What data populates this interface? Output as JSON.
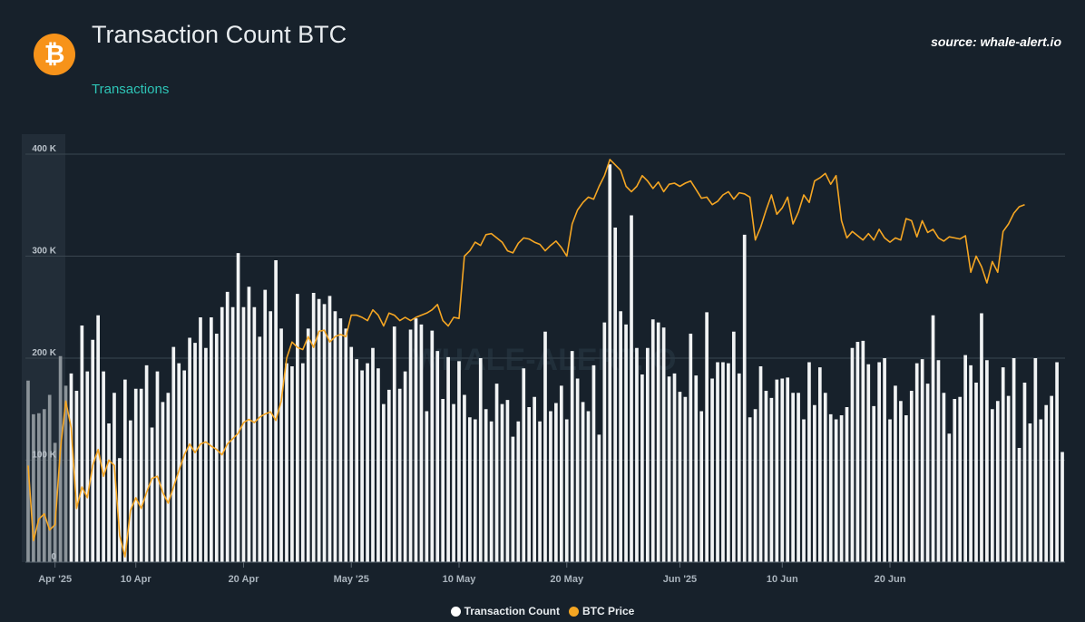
{
  "header": {
    "title": "Transaction Count BTC",
    "subtitle": "Transactions",
    "source": "source: whale-alert.io",
    "logo_symbol": "₿"
  },
  "colors": {
    "background": "#17212b",
    "bar": "#f1f3f4",
    "price_line": "#f5a623",
    "logo": "#f7931a",
    "accent_subtitle": "#2ec4b6",
    "grid": "#3a4650"
  },
  "chart_data": {
    "type": "bar",
    "y_ticks": [
      {
        "value": 0,
        "label": "0"
      },
      {
        "value": 100000,
        "label": "100 K"
      },
      {
        "value": 200000,
        "label": "200 K"
      },
      {
        "value": 300000,
        "label": "300 K"
      },
      {
        "value": 400000,
        "label": "400 K"
      }
    ],
    "ylim": [
      0,
      400000
    ],
    "x_ticks": [
      {
        "label": "Apr '25",
        "index": 5
      },
      {
        "label": "10 Apr",
        "index": 20
      },
      {
        "label": "20 Apr",
        "index": 40
      },
      {
        "label": "May '25",
        "index": 60
      },
      {
        "label": "10 May",
        "index": 80
      },
      {
        "label": "20 May",
        "index": 100
      },
      {
        "label": "Jun '25",
        "index": 121
      },
      {
        "label": "10 Jun",
        "index": 140
      },
      {
        "label": "20 Jun",
        "index": 160
      }
    ],
    "series": [
      {
        "name": "Transaction Count",
        "values": [
          178000,
          145000,
          146000,
          150000,
          164000,
          117000,
          202000,
          173000,
          185000,
          168000,
          232000,
          187000,
          218000,
          242000,
          187000,
          136000,
          166000,
          102000,
          179000,
          139000,
          170000,
          170000,
          193000,
          132000,
          187000,
          157000,
          166000,
          211000,
          195000,
          188000,
          220000,
          215000,
          240000,
          210000,
          240000,
          224000,
          250000,
          265000,
          250000,
          303000,
          250000,
          270000,
          250000,
          221000,
          267000,
          246000,
          296000,
          229000,
          195000,
          192000,
          263000,
          195000,
          229000,
          264000,
          258000,
          253000,
          261000,
          246000,
          239000,
          229000,
          211000,
          199000,
          188000,
          195000,
          210000,
          190000,
          155000,
          169000,
          231000,
          170000,
          187000,
          228000,
          239000,
          233000,
          148000,
          227000,
          207000,
          160000,
          201000,
          155000,
          197000,
          164000,
          142000,
          140000,
          200000,
          150000,
          138000,
          175000,
          155000,
          159000,
          123000,
          138000,
          190000,
          152000,
          162000,
          138000,
          226000,
          148000,
          156000,
          173000,
          140000,
          207000,
          180000,
          157000,
          148000,
          193000,
          125000,
          235000,
          390000,
          328000,
          246000,
          233000,
          340000,
          210000,
          184000,
          210000,
          238000,
          235000,
          230000,
          182000,
          185000,
          167000,
          162000,
          224000,
          183000,
          148000,
          245000,
          180000,
          196000,
          196000,
          195000,
          226000,
          185000,
          321000,
          142000,
          150000,
          192000,
          168000,
          161000,
          179000,
          180000,
          181000,
          166000,
          166000,
          140000,
          196000,
          154000,
          191000,
          166000,
          145000,
          140000,
          144000,
          152000,
          210000,
          216000,
          217000,
          194000,
          153000,
          196000,
          200000,
          140000,
          173000,
          158000,
          144000,
          168000,
          195000,
          199000,
          175000,
          242000,
          198000,
          166000,
          126000,
          160000,
          162000,
          203000,
          193000,
          176000,
          244000,
          198000,
          150000,
          158000,
          191000,
          163000,
          200000,
          112000,
          176000,
          136000,
          200000,
          140000,
          154000,
          163000,
          196000,
          108000
        ]
      },
      {
        "name": "BTC Price",
        "values": [
          83000,
          76000,
          78000,
          78500,
          77000,
          77500,
          84500,
          89000,
          86500,
          79000,
          81000,
          80000,
          83000,
          84500,
          82000,
          83500,
          83000,
          76500,
          74500,
          78800,
          80000,
          79000,
          80500,
          81800,
          82000,
          80500,
          79500,
          81000,
          82500,
          84000,
          85000,
          84200,
          85000,
          85200,
          84800,
          84500,
          84000,
          85000,
          85500,
          86000,
          87000,
          87300,
          87000,
          87500,
          87800,
          88000,
          87200,
          89000,
          93000,
          94500,
          94000,
          93800,
          95000,
          94000,
          95500,
          95600,
          94500,
          95000,
          95200,
          95000,
          97000,
          97000,
          96800,
          96500,
          97500,
          97000,
          96000,
          97200,
          97000,
          96500,
          96800,
          96500,
          96800,
          97000,
          97200,
          97500,
          98000,
          96500,
          96000,
          96800,
          96700,
          102500,
          103000,
          103800,
          103500,
          104500,
          104600,
          104200,
          103800,
          103000,
          102800,
          103700,
          104200,
          104100,
          103800,
          103600,
          103000,
          103500,
          103900,
          103300,
          102500,
          105500,
          106800,
          107500,
          108000,
          107800,
          109000,
          110000,
          111500,
          111000,
          110500,
          109000,
          108500,
          109000,
          110000,
          109500,
          108800,
          109400,
          108500,
          109200,
          109300,
          109000,
          109300,
          109500,
          108700,
          107900,
          108000,
          107300,
          107600,
          108200,
          108500,
          107800,
          108400,
          108300,
          108000,
          104000,
          105200,
          106800,
          108200,
          106400,
          107000,
          108000,
          105500,
          106600,
          108200,
          107500,
          109500,
          109800,
          110200,
          109200,
          110000,
          105800,
          104200,
          104800,
          104400,
          104000,
          104600,
          104000,
          105000,
          104200,
          103800,
          104200,
          104000,
          106000,
          105800,
          104300,
          105800,
          104700,
          105000,
          104200,
          103900,
          104300,
          104200,
          104100,
          104400,
          101000,
          102500,
          101500,
          100000,
          102000,
          101000,
          104800,
          105500,
          106500,
          107100,
          107300
        ]
      }
    ],
    "legend": {
      "items": [
        "Transaction Count",
        "BTC Price"
      ],
      "placement": "bottom-center"
    },
    "grid": true,
    "watermark": "WHALE-ALERT.IO"
  }
}
